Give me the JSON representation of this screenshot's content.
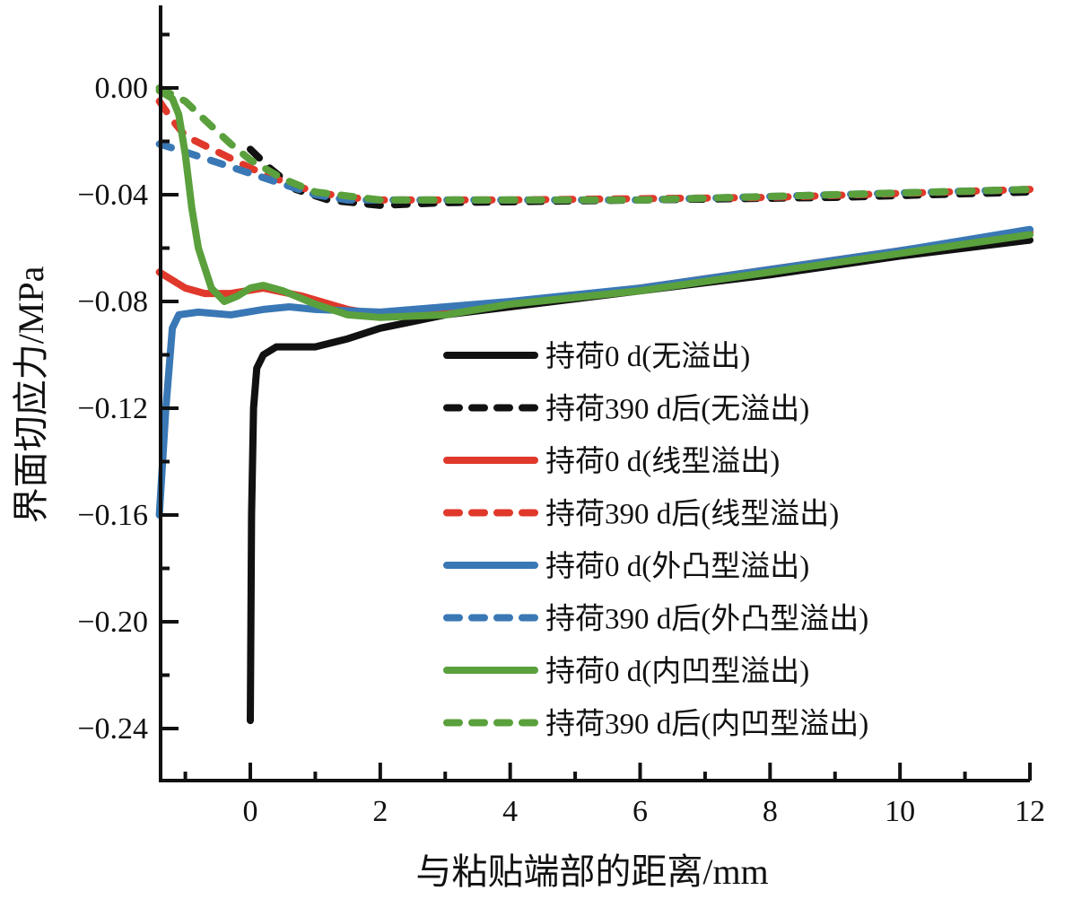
{
  "chart_data": {
    "type": "line",
    "title": "",
    "xlabel": "与粘贴端部的距离/mm",
    "ylabel": "界面切应力/MPa",
    "xlim": [
      -1.4,
      12
    ],
    "ylim": [
      -0.26,
      0.031
    ],
    "xticks": [
      0,
      2,
      4,
      6,
      8,
      10,
      12
    ],
    "xtick_labels": [
      "0",
      "2",
      "4",
      "6",
      "8",
      "10",
      "12"
    ],
    "yticks": [
      0.0,
      -0.04,
      -0.08,
      -0.12,
      -0.16,
      -0.2,
      -0.24
    ],
    "ytick_labels": [
      "0.00",
      "−0.04",
      "−0.08",
      "−0.12",
      "−0.16",
      "−0.20",
      "−0.24"
    ],
    "grid": false,
    "legend_position": "center-right",
    "series": [
      {
        "name": "持荷0 d(无溢出)",
        "color": "#111111",
        "dash": false,
        "points": [
          [
            0,
            -0.237
          ],
          [
            0.02,
            -0.16
          ],
          [
            0.05,
            -0.12
          ],
          [
            0.1,
            -0.105
          ],
          [
            0.2,
            -0.1
          ],
          [
            0.4,
            -0.097
          ],
          [
            1,
            -0.097
          ],
          [
            1.5,
            -0.094
          ],
          [
            2,
            -0.09
          ],
          [
            3,
            -0.085
          ],
          [
            4,
            -0.082
          ],
          [
            6,
            -0.076
          ],
          [
            8,
            -0.07
          ],
          [
            10,
            -0.063
          ],
          [
            12,
            -0.057
          ]
        ]
      },
      {
        "name": "持荷390 d后(无溢出)",
        "color": "#111111",
        "dash": true,
        "points": [
          [
            0,
            -0.023
          ],
          [
            0.3,
            -0.03
          ],
          [
            0.7,
            -0.038
          ],
          [
            1.2,
            -0.042
          ],
          [
            2,
            -0.044
          ],
          [
            3,
            -0.043
          ],
          [
            6,
            -0.042
          ],
          [
            9,
            -0.041
          ],
          [
            12,
            -0.039
          ]
        ]
      },
      {
        "name": "持荷0 d(线型溢出)",
        "color": "#e0392b",
        "dash": false,
        "points": [
          [
            -1.4,
            -0.069
          ],
          [
            -1,
            -0.075
          ],
          [
            -0.7,
            -0.077
          ],
          [
            -0.3,
            -0.077
          ],
          [
            0.2,
            -0.075
          ],
          [
            0.8,
            -0.078
          ],
          [
            1.5,
            -0.083
          ],
          [
            2,
            -0.085
          ],
          [
            3,
            -0.084
          ],
          [
            4,
            -0.081
          ],
          [
            6,
            -0.075
          ],
          [
            8,
            -0.068
          ],
          [
            10,
            -0.061
          ],
          [
            12,
            -0.054
          ]
        ]
      },
      {
        "name": "持荷390 d后(线型溢出)",
        "color": "#e0392b",
        "dash": true,
        "points": [
          [
            -1.4,
            -0.005
          ],
          [
            -1.2,
            -0.012
          ],
          [
            -1,
            -0.018
          ],
          [
            -0.5,
            -0.024
          ],
          [
            0,
            -0.03
          ],
          [
            0.5,
            -0.035
          ],
          [
            1,
            -0.039
          ],
          [
            1.5,
            -0.041
          ],
          [
            2,
            -0.042
          ],
          [
            4,
            -0.042
          ],
          [
            8,
            -0.041
          ],
          [
            12,
            -0.038
          ]
        ]
      },
      {
        "name": "持荷0 d(外凸型溢出)",
        "color": "#3a78b5",
        "dash": false,
        "points": [
          [
            -1.4,
            -0.16
          ],
          [
            -1.3,
            -0.12
          ],
          [
            -1.2,
            -0.09
          ],
          [
            -1.1,
            -0.085
          ],
          [
            -0.8,
            -0.084
          ],
          [
            -0.3,
            -0.085
          ],
          [
            0.2,
            -0.083
          ],
          [
            0.6,
            -0.082
          ],
          [
            1,
            -0.083
          ],
          [
            2,
            -0.084
          ],
          [
            3,
            -0.082
          ],
          [
            4,
            -0.08
          ],
          [
            6,
            -0.075
          ],
          [
            8,
            -0.068
          ],
          [
            10,
            -0.061
          ],
          [
            12,
            -0.053
          ]
        ]
      },
      {
        "name": "持荷390 d后(外凸型溢出)",
        "color": "#3a78b5",
        "dash": true,
        "points": [
          [
            -1.4,
            -0.021
          ],
          [
            -1,
            -0.024
          ],
          [
            -0.5,
            -0.028
          ],
          [
            0,
            -0.032
          ],
          [
            0.5,
            -0.036
          ],
          [
            1,
            -0.04
          ],
          [
            1.5,
            -0.042
          ],
          [
            2,
            -0.042
          ],
          [
            6,
            -0.042
          ],
          [
            12,
            -0.038
          ]
        ]
      },
      {
        "name": "持荷0 d(内凹型溢出)",
        "color": "#5aa03c",
        "dash": false,
        "points": [
          [
            -1.4,
            -0.001
          ],
          [
            -1.2,
            -0.004
          ],
          [
            -1.1,
            -0.01
          ],
          [
            -1,
            -0.025
          ],
          [
            -0.9,
            -0.045
          ],
          [
            -0.8,
            -0.06
          ],
          [
            -0.6,
            -0.075
          ],
          [
            -0.4,
            -0.08
          ],
          [
            -0.2,
            -0.078
          ],
          [
            0,
            -0.075
          ],
          [
            0.2,
            -0.074
          ],
          [
            0.5,
            -0.076
          ],
          [
            1,
            -0.081
          ],
          [
            1.5,
            -0.085
          ],
          [
            2,
            -0.086
          ],
          [
            3,
            -0.085
          ],
          [
            4,
            -0.081
          ],
          [
            6,
            -0.076
          ],
          [
            8,
            -0.069
          ],
          [
            10,
            -0.062
          ],
          [
            12,
            -0.055
          ]
        ]
      },
      {
        "name": "持荷390 d后(内凹型溢出)",
        "color": "#5aa03c",
        "dash": true,
        "points": [
          [
            -1.4,
            0
          ],
          [
            -1,
            -0.005
          ],
          [
            -0.7,
            -0.012
          ],
          [
            -0.3,
            -0.021
          ],
          [
            0,
            -0.027
          ],
          [
            0.5,
            -0.034
          ],
          [
            1,
            -0.039
          ],
          [
            2,
            -0.042
          ],
          [
            6,
            -0.042
          ],
          [
            12,
            -0.038
          ]
        ]
      }
    ]
  }
}
